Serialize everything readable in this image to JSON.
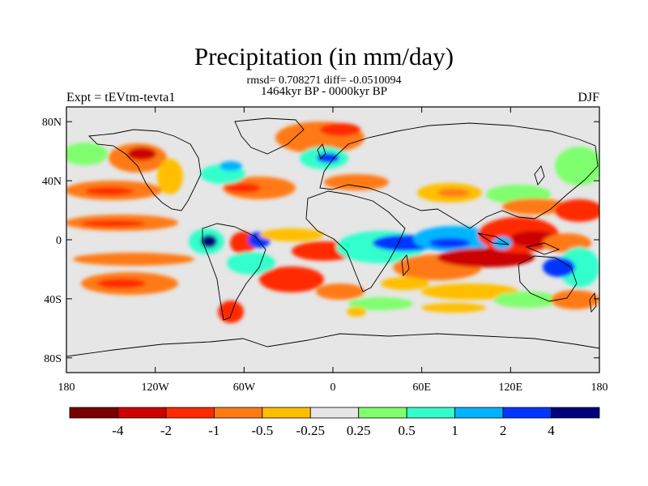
{
  "title": "Precipitation (in mm/day)",
  "stats": "rmsd= 0.708271 diff= -0.0510094",
  "period": "1464kyr BP - 0000kyr BP",
  "experiment": "Expt = tEVtm-tevta1",
  "season": "DJF",
  "lon_ticks": [
    "180",
    "120W",
    "60W",
    "0",
    "60E",
    "120E",
    "180"
  ],
  "lat_ticks": [
    "80N",
    "40N",
    "0",
    "40S",
    "80S"
  ],
  "colorbar": {
    "labels": [
      "-4",
      "-2",
      "-1",
      "-0.5",
      "-0.25",
      "0.25",
      "0.5",
      "1",
      "2",
      "4"
    ],
    "colors": [
      "#7a0000",
      "#cc0000",
      "#ff2a00",
      "#ff7a14",
      "#ffbf00",
      "#e6e6e6",
      "#7fff6e",
      "#33ffcc",
      "#00b4ff",
      "#0036ff",
      "#00007a"
    ]
  },
  "map": {
    "lon_range": [
      -180,
      180
    ],
    "lat_range": [
      -90,
      90
    ],
    "background_color": "#e6e6e6",
    "coastline_color": "#000000"
  }
}
